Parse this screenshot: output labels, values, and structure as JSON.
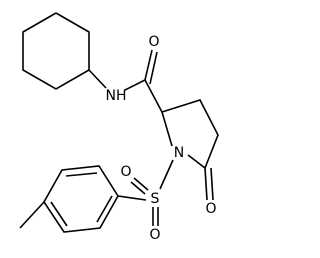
{
  "atoms": [
    {
      "label": "O"
    },
    {
      "label": "NH"
    },
    {
      "label": "N"
    },
    {
      "label": "S"
    },
    {
      "label": "O"
    },
    {
      "label": "O"
    },
    {
      "label": "O"
    }
  ]
}
